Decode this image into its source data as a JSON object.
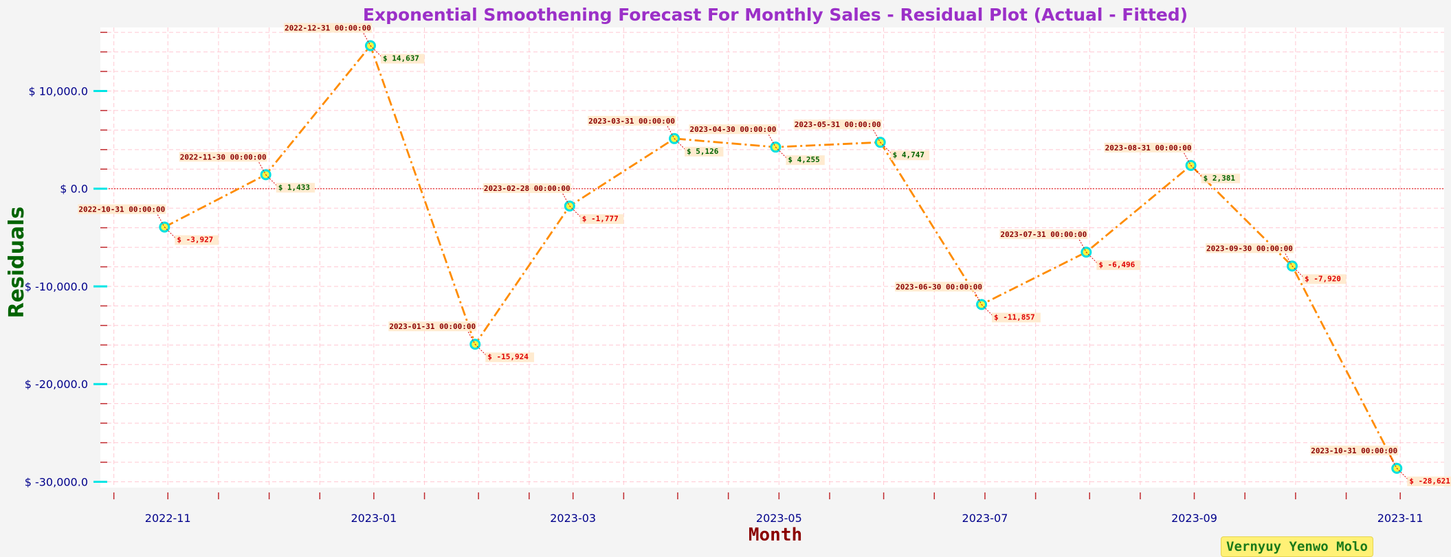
{
  "chart_data": {
    "type": "line",
    "title": "Exponential Smoothening Forecast For Monthly Sales - Residual Plot (Actual - Fitted)",
    "xlabel": "Month",
    "ylabel": "Residuals",
    "x": [
      "2022-10-31 00:00:00",
      "2022-11-30 00:00:00",
      "2022-12-31 00:00:00",
      "2023-01-31 00:00:00",
      "2023-02-28 00:00:00",
      "2023-03-31 00:00:00",
      "2023-04-30 00:00:00",
      "2023-05-31 00:00:00",
      "2023-06-30 00:00:00",
      "2023-07-31 00:00:00",
      "2023-08-31 00:00:00",
      "2023-09-30 00:00:00",
      "2023-10-31 00:00:00"
    ],
    "series": [
      {
        "values": [
          -3927,
          1433,
          14637,
          -15924,
          -1777,
          5126,
          4255,
          4747,
          -11857,
          -6496,
          2381,
          -7920,
          -28621
        ],
        "value_labels": [
          "$ -3,927",
          "$ 1,433",
          "$ 14,637",
          "$ -15,924",
          "$ -1,777",
          "$ 5,126",
          "$ 4,255",
          "$ 4,747",
          "$ -11,857",
          "$ -6,496",
          "$ 2,381",
          "$ -7,920",
          "$ -28,621"
        ],
        "color": "#ff8c00",
        "style": "dash-dot",
        "marker_fill": "#f5f542",
        "marker_edge": "#00e0e0"
      }
    ],
    "x_ticks": [
      "2022-11",
      "2023-01",
      "2023-03",
      "2023-05",
      "2023-07",
      "2023-09",
      "2023-11"
    ],
    "x_tick_dates": [
      "2022-11-01",
      "2023-01-01",
      "2023-03-01",
      "2023-05-01",
      "2023-07-01",
      "2023-09-01",
      "2023-11-01"
    ],
    "x_range": [
      "2022-10-12",
      "2023-11-14"
    ],
    "y_ticks": [
      10000,
      0,
      -10000,
      -20000,
      -30000
    ],
    "y_tick_labels": [
      "$ 10,000.0",
      "$ 0.0",
      "$ -10,000.0",
      "$ -20,000.0",
      "$ -30,000.0"
    ],
    "ylim": [
      -30600,
      16500
    ],
    "reference_line": 0,
    "grid": true,
    "colors": {
      "title": "#9b30c8",
      "ylabel": "#006400",
      "xlabel": "#8b0000",
      "tick_label": "#00008b",
      "major_tick": "#00e5e5",
      "minor_tick": "#c0282d",
      "grid": "#ffc8d2",
      "zero_line": "#e03030",
      "positive_label": "#006400",
      "negative_label": "#e00000",
      "date_label": "#8b0000",
      "label_box": "#ffe8c8"
    }
  },
  "credit": "Vernyuy Yenwo Molo"
}
